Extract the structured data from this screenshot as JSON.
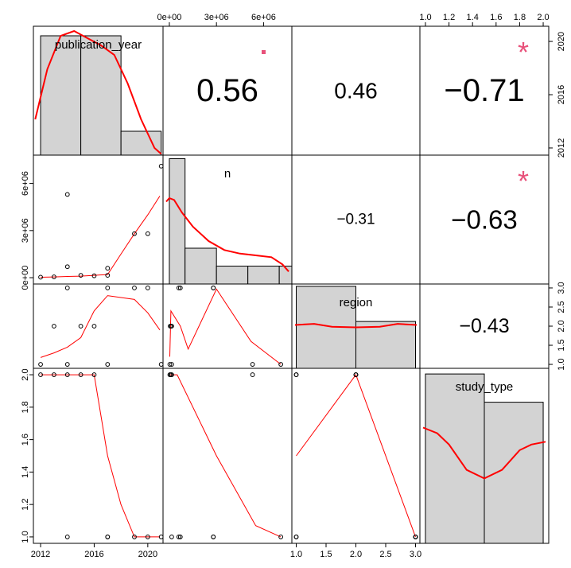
{
  "chart_data": {
    "type": "scatter_matrix",
    "variables": [
      "publication_year",
      "n",
      "region",
      "study_type"
    ],
    "colors": {
      "hist_fill": "#d3d3d3",
      "curve": "#ff0000",
      "star": "#e8517a",
      "points": "#000000"
    },
    "axes": {
      "publication_year": {
        "range": [
          2011.7,
          2020.9
        ],
        "ticks": [
          2012,
          2016,
          2020
        ]
      },
      "n": {
        "range": [
          -200000,
          7600000
        ],
        "ticks": [
          "0e+00",
          "3e+06",
          "6e+06"
        ],
        "tick_values": [
          0,
          3000000,
          6000000
        ]
      },
      "region": {
        "range": [
          0.98,
          3.02
        ],
        "ticks": [
          "1.0",
          "1.5",
          "2.0",
          "2.5",
          "3.0"
        ],
        "tick_values": [
          1.0,
          1.5,
          2.0,
          2.5,
          3.0
        ]
      },
      "study_type": {
        "range": [
          0.98,
          2.02
        ],
        "ticks": [
          "1.0",
          "1.2",
          "1.4",
          "1.6",
          "1.8",
          "2.0"
        ],
        "tick_values": [
          1.0,
          1.2,
          1.4,
          1.6,
          1.8,
          2.0
        ]
      }
    },
    "observations": [
      {
        "publication_year": 2012,
        "n": 30000,
        "region": 1,
        "study_type": 2
      },
      {
        "publication_year": 2013,
        "n": 50000,
        "region": 2,
        "study_type": 2
      },
      {
        "publication_year": 2014,
        "n": 5300000,
        "region": 1,
        "study_type": 2
      },
      {
        "publication_year": 2014,
        "n": 700000,
        "region": 3,
        "study_type": 1
      },
      {
        "publication_year": 2015,
        "n": 150000,
        "region": 2,
        "study_type": 2
      },
      {
        "publication_year": 2016,
        "n": 120000,
        "region": 2,
        "study_type": 2
      },
      {
        "publication_year": 2017,
        "n": 600000,
        "region": 3,
        "study_type": 1
      },
      {
        "publication_year": 2017,
        "n": 150000,
        "region": 1,
        "study_type": 1
      },
      {
        "publication_year": 2019,
        "n": 2800000,
        "region": 3,
        "study_type": 1
      },
      {
        "publication_year": 2020,
        "n": 2800000,
        "region": 3,
        "study_type": 1
      },
      {
        "publication_year": 2021,
        "n": 7100000,
        "region": 1,
        "study_type": 1
      }
    ],
    "histograms": {
      "publication_year": {
        "breaks": [
          2012,
          2015,
          2018,
          2021
        ],
        "counts": [
          5,
          5,
          1
        ],
        "ymax": 5.4
      },
      "n": {
        "breaks": [
          0,
          1000000,
          3000000,
          5000000,
          7000000,
          8000000
        ],
        "counts": [
          7,
          2,
          1,
          1,
          1
        ],
        "ymax": 7.2
      },
      "region": {
        "breaks": [
          1,
          2,
          3
        ],
        "counts": [
          7,
          4
        ],
        "ymax": 7.2
      },
      "study_type": {
        "breaks": [
          1,
          1.5,
          2
        ],
        "counts": [
          6,
          5
        ],
        "ymax": 6.2
      }
    },
    "density_curves": {
      "publication_year": [
        [
          2011.6,
          1.5
        ],
        [
          2012.5,
          3.6
        ],
        [
          2013.5,
          5.0
        ],
        [
          2014.5,
          5.2
        ],
        [
          2015.5,
          4.9
        ],
        [
          2016.5,
          4.6
        ],
        [
          2017.5,
          4.2
        ],
        [
          2018.5,
          3.0
        ],
        [
          2019.5,
          1.5
        ],
        [
          2020.5,
          0.3
        ],
        [
          2021.0,
          0.05
        ]
      ],
      "n": [
        [
          -200000,
          4.6
        ],
        [
          0,
          4.8
        ],
        [
          300000,
          4.7
        ],
        [
          800000,
          4.0
        ],
        [
          1500000,
          3.2
        ],
        [
          2500000,
          2.4
        ],
        [
          3500000,
          1.9
        ],
        [
          4500000,
          1.7
        ],
        [
          5500000,
          1.6
        ],
        [
          6500000,
          1.5
        ],
        [
          7200000,
          1.1
        ],
        [
          7600000,
          0.7
        ]
      ],
      "region": [
        [
          0.98,
          3.7
        ],
        [
          1.3,
          3.8
        ],
        [
          1.6,
          3.55
        ],
        [
          2.0,
          3.5
        ],
        [
          2.4,
          3.55
        ],
        [
          2.7,
          3.8
        ],
        [
          3.02,
          3.7
        ]
      ],
      "study_type": [
        [
          0.98,
          4.1
        ],
        [
          1.1,
          3.9
        ],
        [
          1.2,
          3.5
        ],
        [
          1.35,
          2.6
        ],
        [
          1.5,
          2.3
        ],
        [
          1.65,
          2.6
        ],
        [
          1.8,
          3.3
        ],
        [
          1.9,
          3.5
        ],
        [
          2.02,
          3.6
        ]
      ]
    },
    "smoothers": [
      {
        "row": "n",
        "col": "publication_year",
        "points": [
          [
            2012,
            30000
          ],
          [
            2013,
            50000
          ],
          [
            2014,
            80000
          ],
          [
            2015,
            100000
          ],
          [
            2016,
            150000
          ],
          [
            2017,
            200000
          ],
          [
            2018,
            1500000
          ],
          [
            2019,
            2800000
          ],
          [
            2020,
            4000000
          ],
          [
            2020.9,
            5200000
          ]
        ]
      },
      {
        "row": "region",
        "col": "publication_year",
        "points": [
          [
            2012,
            1.18
          ],
          [
            2013,
            1.3
          ],
          [
            2014,
            1.45
          ],
          [
            2015,
            1.7
          ],
          [
            2016,
            2.4
          ],
          [
            2017,
            2.8
          ],
          [
            2018,
            2.75
          ],
          [
            2019,
            2.7
          ],
          [
            2020,
            2.35
          ],
          [
            2020.9,
            1.9
          ]
        ]
      },
      {
        "row": "region",
        "col": "n",
        "points": [
          [
            30000,
            1.2
          ],
          [
            100000,
            2.4
          ],
          [
            700000,
            2.0
          ],
          [
            1200000,
            1.4
          ],
          [
            3000000,
            2.97
          ],
          [
            5200000,
            1.6
          ],
          [
            7100000,
            1.0
          ]
        ]
      },
      {
        "row": "study_type",
        "col": "publication_year",
        "points": [
          [
            2012,
            2.0
          ],
          [
            2014,
            2.0
          ],
          [
            2016,
            2.0
          ],
          [
            2017,
            1.5
          ],
          [
            2018,
            1.2
          ],
          [
            2019,
            1.0
          ],
          [
            2020,
            1.0
          ],
          [
            2020.9,
            1.0
          ]
        ]
      },
      {
        "row": "study_type",
        "col": "n",
        "points": [
          [
            30000,
            2.0
          ],
          [
            500000,
            2.0
          ],
          [
            3000000,
            1.5
          ],
          [
            5500000,
            1.07
          ],
          [
            7100000,
            1.0
          ]
        ]
      },
      {
        "row": "study_type",
        "col": "region",
        "points": [
          [
            1.0,
            1.5
          ],
          [
            2.0,
            2.0
          ],
          [
            3.0,
            1.0
          ]
        ]
      }
    ],
    "correlations": [
      {
        "row": "publication_year",
        "col": "n",
        "label": "0.56",
        "size": 40,
        "star": "."
      },
      {
        "row": "publication_year",
        "col": "region",
        "label": "0.46",
        "size": 28,
        "star": ""
      },
      {
        "row": "publication_year",
        "col": "study_type",
        "label": "−0.71",
        "size": 40,
        "star": "*"
      },
      {
        "row": "n",
        "col": "region",
        "label": "−0.31",
        "size": 19,
        "star": ""
      },
      {
        "row": "n",
        "col": "study_type",
        "label": "−0.63",
        "size": 33,
        "star": "*"
      },
      {
        "row": "region",
        "col": "study_type",
        "label": "−0.43",
        "size": 25,
        "star": ""
      }
    ]
  }
}
